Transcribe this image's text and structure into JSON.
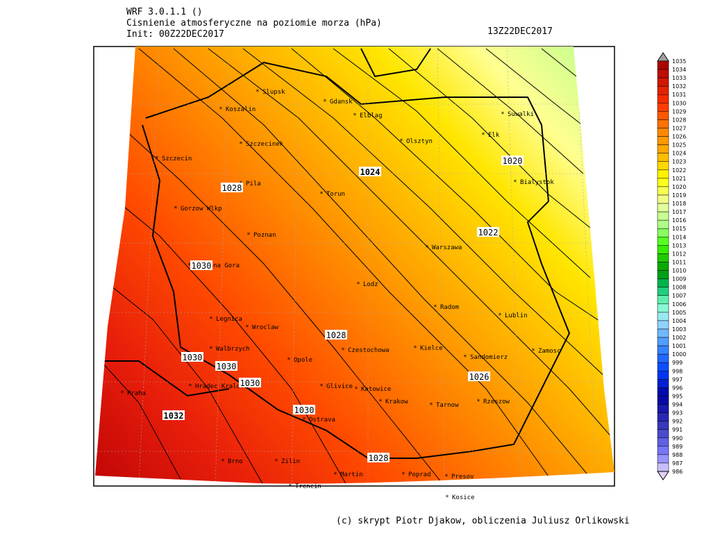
{
  "header": {
    "model": "WRF 3.0.1.1 ()",
    "title": "Cisnienie atmosferyczne na poziomie morza (hPa)",
    "init": "Init: 00Z22DEC2017",
    "valid": "13Z22DEC2017"
  },
  "cities": [
    "Slupsk",
    "Koszalin",
    "Gdansk",
    "Elblag",
    "Suwalki",
    "Elk",
    "Szczecinek",
    "Olsztyn",
    "Szczecin",
    "Bialystok",
    "Pila",
    "Torun",
    "Gorzow Wlkp",
    "Poznan",
    "Warszawa",
    "Zielona Gora",
    "Lodz",
    "Radom",
    "Lublin",
    "Legnica",
    "Wroclaw",
    "Walbrzych",
    "Czestochowa",
    "Kielce",
    "Sandomierz",
    "Zamosc",
    "Opole",
    "Hradec Kralove",
    "Glivice",
    "Katowice",
    "Praha",
    "Krakow",
    "Tarnow",
    "Rzeszow",
    "Ostrava",
    "Brno",
    "Zilin",
    "Martin",
    "Poprad",
    "Presov",
    "Trencin",
    "Kosice"
  ],
  "contour_labels": [
    1024,
    1020,
    1028,
    1022,
    1030,
    1028,
    1030,
    1030,
    1030,
    1026,
    1032,
    1030,
    1028
  ],
  "colorbar": {
    "labels": [
      1035,
      1034,
      1033,
      1032,
      1031,
      1030,
      1029,
      1028,
      1027,
      1026,
      1025,
      1024,
      1023,
      1022,
      1021,
      1020,
      1019,
      1018,
      1017,
      1016,
      1015,
      1014,
      1013,
      1012,
      1011,
      1010,
      1009,
      1008,
      1007,
      1006,
      1005,
      1004,
      1003,
      1002,
      1001,
      1000,
      999,
      998,
      997,
      996,
      995,
      994,
      993,
      992,
      991,
      990,
      989,
      988,
      987,
      986
    ]
  },
  "credit": "(c) skrypt Piotr Djakow, obliczenia Juliusz Orlikowski"
}
